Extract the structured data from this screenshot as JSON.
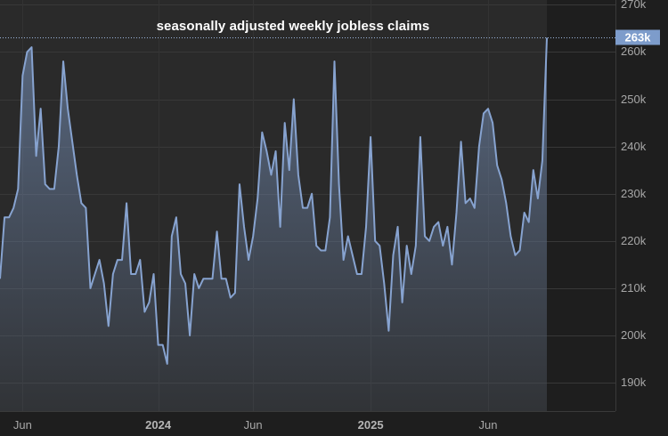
{
  "chart_data": {
    "type": "area",
    "title": "seasonally adjusted weekly jobless claims",
    "xlabel": "",
    "ylabel": "",
    "ylim": [
      184,
      271
    ],
    "y_ticks": [
      {
        "value": 270,
        "label": "270k"
      },
      {
        "value": 260,
        "label": "260k"
      },
      {
        "value": 250,
        "label": "250k"
      },
      {
        "value": 240,
        "label": "240k"
      },
      {
        "value": 230,
        "label": "230k"
      },
      {
        "value": 220,
        "label": "220k"
      },
      {
        "value": 210,
        "label": "210k"
      },
      {
        "value": 200,
        "label": "200k"
      },
      {
        "value": 190,
        "label": "190k"
      }
    ],
    "x_ticks": [
      {
        "index": 5,
        "label": "Jun",
        "bold": false
      },
      {
        "index": 35,
        "label": "2024",
        "bold": true
      },
      {
        "index": 56,
        "label": "Jun",
        "bold": false
      },
      {
        "index": 82,
        "label": "2025",
        "bold": true
      },
      {
        "index": 108,
        "label": "Jun",
        "bold": false
      }
    ],
    "last_value_label": "263k",
    "last_value": 263,
    "series": [
      {
        "name": "seasonally adjusted weekly jobless claims",
        "values": [
          212,
          225,
          225,
          227,
          231,
          255,
          260,
          261,
          238,
          248,
          232,
          231,
          231,
          240,
          258,
          248,
          241,
          234,
          228,
          227,
          210,
          213,
          216,
          211,
          202,
          213,
          216,
          216,
          228,
          213,
          213,
          216,
          205,
          207,
          213,
          198,
          198,
          194,
          221,
          225,
          213,
          211,
          200,
          213,
          210,
          212,
          212,
          212,
          222,
          212,
          212,
          208,
          209,
          232,
          223,
          216,
          221,
          229,
          243,
          239,
          234,
          239,
          223,
          245,
          235,
          250,
          234,
          227,
          227,
          230,
          219,
          218,
          218,
          225,
          258,
          232,
          216,
          221,
          217,
          213,
          213,
          223,
          242,
          220,
          219,
          211,
          201,
          217,
          223,
          207,
          219,
          213,
          219,
          242,
          221,
          220,
          223,
          224,
          219,
          223,
          215,
          226,
          241,
          228,
          229,
          227,
          240,
          247,
          248,
          245,
          236,
          233,
          228,
          221,
          217,
          218,
          226,
          224,
          235,
          229,
          237,
          263
        ]
      }
    ]
  }
}
